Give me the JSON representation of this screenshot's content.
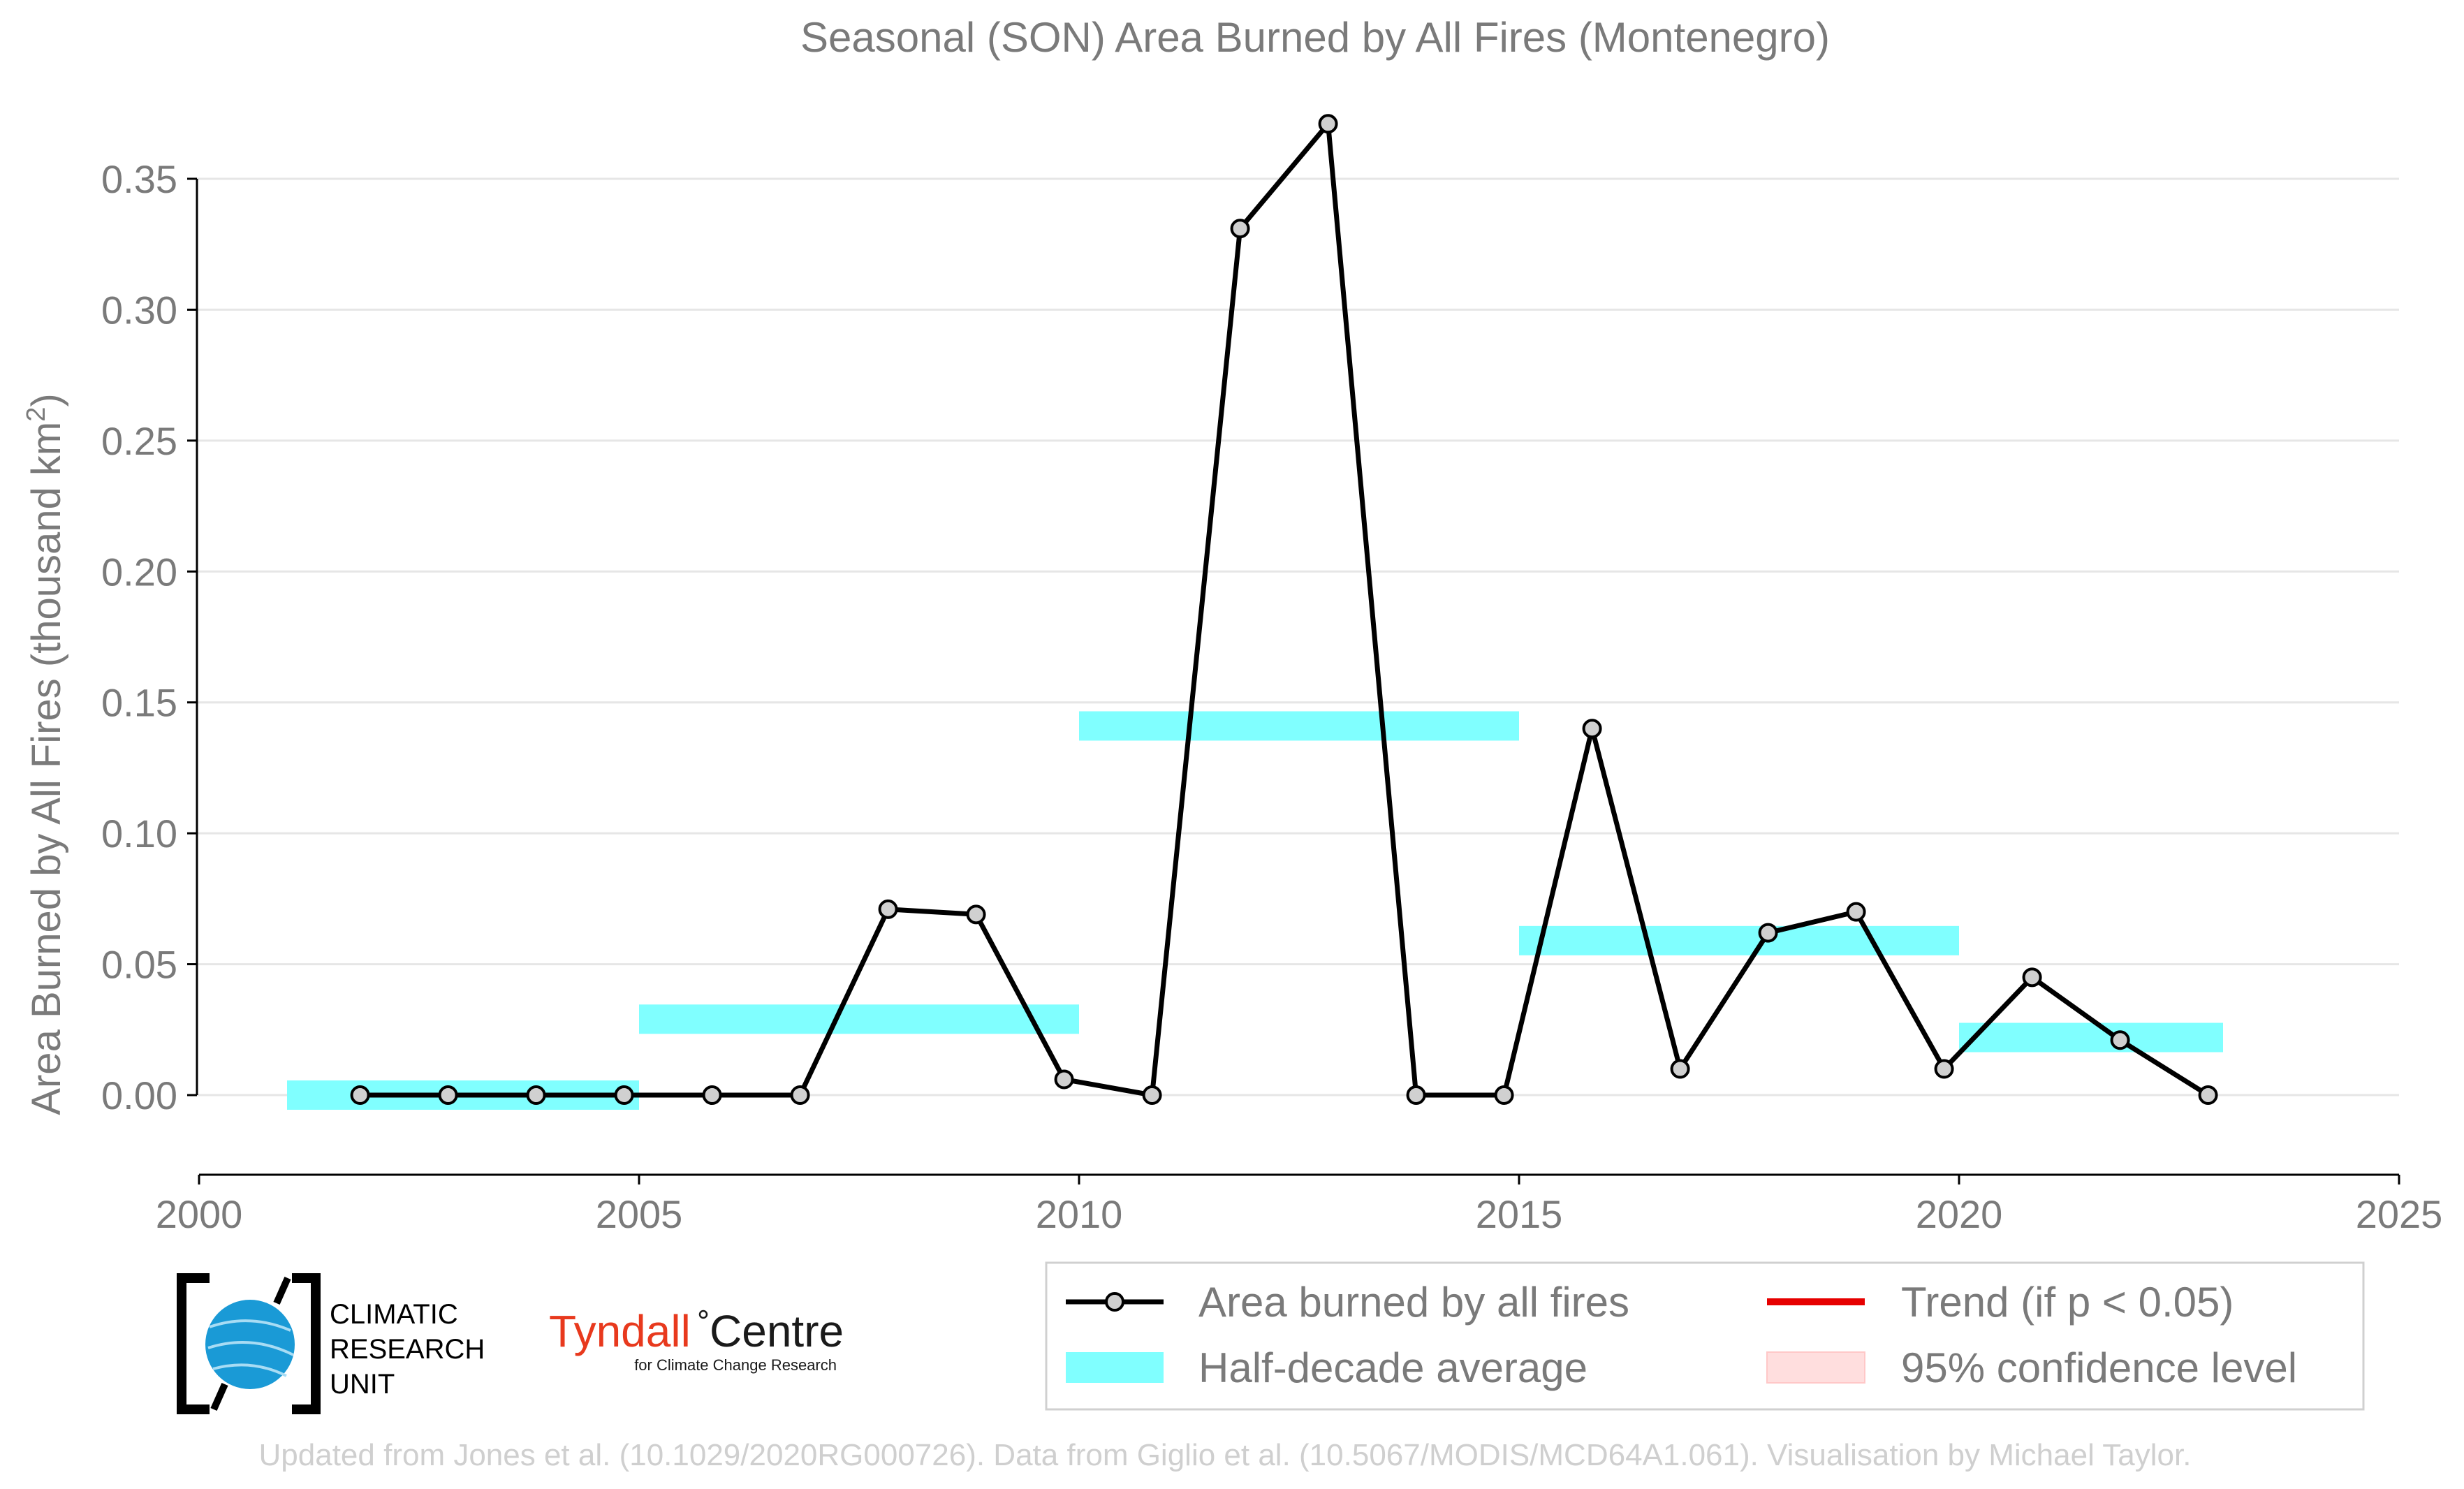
{
  "chart_data": {
    "type": "line",
    "title": "Seasonal (SON) Area Burned by All Fires (Montenegro)",
    "ylabel_main": "Area Burned by All Fires (thousand km",
    "ylabel_sup": "2",
    "ylabel_end": ")",
    "xlim": [
      2000,
      2025
    ],
    "ylim": [
      -0.03,
      0.37
    ],
    "x_ticks": [
      2000,
      2005,
      2010,
      2015,
      2020,
      2025
    ],
    "x_tick_labels": [
      "2000",
      "2005",
      "2010",
      "2015",
      "2020",
      "2025"
    ],
    "y_ticks": [
      0.0,
      0.05,
      0.1,
      0.15,
      0.2,
      0.25,
      0.3,
      0.35
    ],
    "y_tick_labels": [
      "0.00",
      "0.05",
      "0.10",
      "0.15",
      "0.20",
      "0.25",
      "0.30",
      "0.35"
    ],
    "grid": "horizontal",
    "series": [
      {
        "name": "Area burned by all fires",
        "x": [
          2001.83,
          2002.83,
          2003.83,
          2004.83,
          2005.83,
          2006.83,
          2007.83,
          2008.83,
          2009.83,
          2010.83,
          2011.83,
          2012.83,
          2013.83,
          2014.83,
          2015.83,
          2016.83,
          2017.83,
          2018.83,
          2019.83,
          2020.83,
          2021.83,
          2022.83
        ],
        "values": [
          0.0,
          0.0,
          0.0,
          0.0,
          0.0,
          0.0,
          0.071,
          0.069,
          0.006,
          0.0,
          0.331,
          0.371,
          0.0,
          0.0,
          0.14,
          0.01,
          0.062,
          0.07,
          0.01,
          0.045,
          0.021,
          0.0
        ],
        "color": "#000000"
      }
    ],
    "half_decade_average": {
      "name": "Half-decade average",
      "color": "#80ffff",
      "segments": [
        {
          "x_start": 2001.0,
          "x_end": 2005.0,
          "value": 0.0
        },
        {
          "x_start": 2005.0,
          "x_end": 2010.0,
          "value": 0.029
        },
        {
          "x_start": 2010.0,
          "x_end": 2015.0,
          "value": 0.141
        },
        {
          "x_start": 2015.0,
          "x_end": 2020.0,
          "value": 0.059
        },
        {
          "x_start": 2020.0,
          "x_end": 2023.0,
          "value": 0.022
        }
      ]
    },
    "legend": {
      "placement": "bottom-right",
      "items": [
        {
          "key": "series",
          "label": "Area burned by all fires"
        },
        {
          "key": "trend",
          "label": "Trend (if p < 0.05)",
          "color": "#e60000"
        },
        {
          "key": "average",
          "label": "Half-decade average"
        },
        {
          "key": "ci",
          "label": "95% confidence level",
          "color": "#ffdede"
        }
      ]
    }
  },
  "logos": {
    "cru_lines": [
      "CLIMATIC",
      "RESEARCH",
      "UNIT"
    ],
    "tyndall_name": "Tyndall",
    "tyndall_name2": "Centre",
    "tyndall_sub": "for Climate Change Research"
  },
  "footer": "Updated from Jones et al. (10.1029/2020RG000726). Data from Giglio et al. (10.5067/MODIS/MCD64A1.061). Visualisation by Michael Taylor."
}
